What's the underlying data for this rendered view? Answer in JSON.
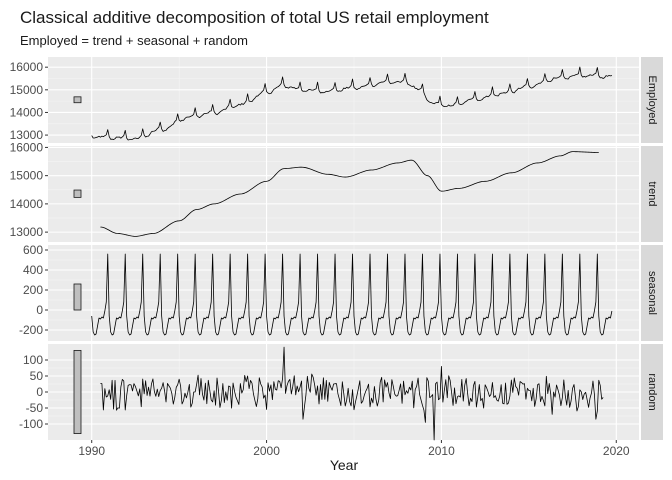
{
  "chart_data": {
    "type": "line",
    "title": "Classical additive decomposition of total US retail employment",
    "subtitle": "Employed = trend + seasonal + random",
    "xlabel": "Year",
    "xlim": [
      1987.5,
      2021.3
    ],
    "x_ticks": [
      1990,
      2000,
      2010,
      2020
    ],
    "x_tick_labels": [
      "1990",
      "2000",
      "2010",
      "2020"
    ],
    "grid": true,
    "scale_bar_note": "grey bars at left of each panel have equal data-unit length",
    "panels": [
      {
        "name": "Employed",
        "ylim": [
          12650,
          16450
        ],
        "y_ticks": [
          13000,
          14000,
          15000,
          16000
        ],
        "y_tick_labels": [
          "13000",
          "14000",
          "15000",
          "16000"
        ],
        "scale_bar": [
          14430,
          14690
        ],
        "start_year": 1990.0,
        "seasonal_amplitude": 300,
        "anchors": [
          [
            1990.0,
            13000
          ],
          [
            1991.0,
            12950
          ],
          [
            1992.5,
            12900
          ],
          [
            1994.0,
            13300
          ],
          [
            1995.5,
            13850
          ],
          [
            1997.0,
            14050
          ],
          [
            1998.5,
            14400
          ],
          [
            2000.0,
            14950
          ],
          [
            2001.0,
            15250
          ],
          [
            2002.0,
            15050
          ],
          [
            2003.5,
            15000
          ],
          [
            2005.0,
            15150
          ],
          [
            2007.0,
            15400
          ],
          [
            2008.0,
            15400
          ],
          [
            2008.8,
            15000
          ],
          [
            2009.5,
            14450
          ],
          [
            2010.5,
            14350
          ],
          [
            2012.0,
            14650
          ],
          [
            2013.5,
            14900
          ],
          [
            2015.0,
            15200
          ],
          [
            2016.5,
            15550
          ],
          [
            2018.0,
            15700
          ],
          [
            2019.6,
            15650
          ]
        ]
      },
      {
        "name": "trend",
        "ylim": [
          12650,
          16050
        ],
        "y_ticks": [
          13000,
          14000,
          15000,
          16000
        ],
        "y_tick_labels": [
          "13000",
          "14000",
          "15000",
          "16000"
        ],
        "scale_bar": [
          14230,
          14490
        ],
        "start_year": 1990.5,
        "seasonal_amplitude": 0,
        "anchors": [
          [
            1990.5,
            13180
          ],
          [
            1991.5,
            12950
          ],
          [
            1992.5,
            12850
          ],
          [
            1993.5,
            12950
          ],
          [
            1995.0,
            13400
          ],
          [
            1996.0,
            13800
          ],
          [
            1997.0,
            14000
          ],
          [
            1998.5,
            14350
          ],
          [
            2000.0,
            14800
          ],
          [
            2001.0,
            15250
          ],
          [
            2002.0,
            15300
          ],
          [
            2003.5,
            15050
          ],
          [
            2004.5,
            14950
          ],
          [
            2006.0,
            15200
          ],
          [
            2007.5,
            15450
          ],
          [
            2008.3,
            15550
          ],
          [
            2009.2,
            15000
          ],
          [
            2010.0,
            14450
          ],
          [
            2011.0,
            14550
          ],
          [
            2012.5,
            14800
          ],
          [
            2014.0,
            15100
          ],
          [
            2015.5,
            15450
          ],
          [
            2016.8,
            15700
          ],
          [
            2017.5,
            15850
          ],
          [
            2019.0,
            15820
          ]
        ]
      },
      {
        "name": "seasonal",
        "ylim": [
          -310,
          650
        ],
        "y_ticks": [
          -200,
          0,
          200,
          400,
          600
        ],
        "y_tick_labels": [
          "-200",
          "0",
          "200",
          "400",
          "600"
        ],
        "scale_bar": [
          0,
          260
        ],
        "start_year": 1990.0,
        "seasonal_pattern": [
          -60,
          -220,
          -250,
          -240,
          -160,
          -80,
          -90,
          -70,
          -80,
          -10,
          80,
          560
        ],
        "anchors": []
      },
      {
        "name": "random",
        "ylim": [
          -150,
          150
        ],
        "y_ticks": [
          -100,
          -50,
          0,
          50,
          100
        ],
        "y_tick_labels": [
          "-100",
          "-50",
          "0",
          "50",
          "100"
        ],
        "scale_bar": [
          -130,
          130
        ],
        "start_year": 1990.5,
        "noise_amplitude": 45,
        "spikes": [
          [
            2001.0,
            140
          ],
          [
            2002.1,
            -85
          ],
          [
            2009.1,
            -95
          ],
          [
            2009.6,
            -150
          ],
          [
            2010.0,
            80
          ],
          [
            2016.3,
            -70
          ],
          [
            2018.8,
            -85
          ],
          [
            2019.3,
            75
          ]
        ],
        "anchors": []
      }
    ]
  }
}
